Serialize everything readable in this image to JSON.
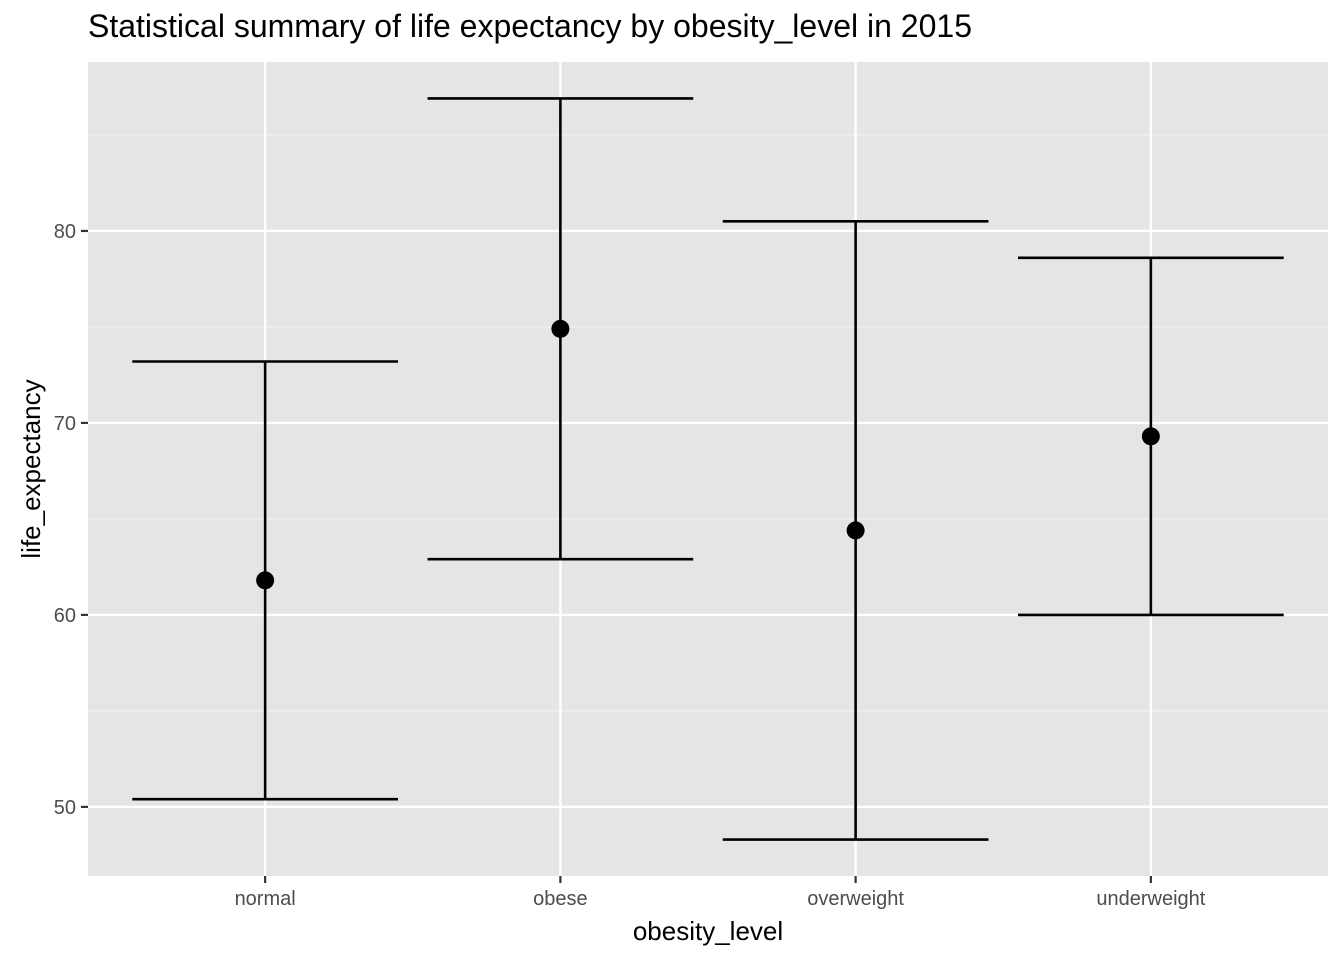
{
  "chart_data": {
    "type": "errorbar",
    "title": "Statistical summary of life expectancy by obesity_level in 2015",
    "xlabel": "obesity_level",
    "ylabel": "life_expectancy",
    "categories": [
      "normal",
      "obese",
      "overweight",
      "underweight"
    ],
    "series": [
      {
        "points": [
          {
            "x": "normal",
            "mean": 61.8,
            "ymin": 50.4,
            "ymax": 73.2
          },
          {
            "x": "obese",
            "mean": 74.9,
            "ymin": 62.9,
            "ymax": 86.9
          },
          {
            "x": "overweight",
            "mean": 64.4,
            "ymin": 48.3,
            "ymax": 80.5
          },
          {
            "x": "underweight",
            "mean": 69.3,
            "ymin": 60.0,
            "ymax": 78.6
          }
        ]
      }
    ],
    "yticks": [
      50,
      60,
      70,
      80
    ],
    "ylim": [
      46.4,
      88.8
    ],
    "grid": true,
    "legend": "none",
    "colors": {
      "panel_background": "#e5e5e5",
      "grid_major": "#ffffff",
      "grid_minor": "#f2f2f2",
      "mark": "#000000",
      "tick_text": "#4d4d4d"
    }
  }
}
